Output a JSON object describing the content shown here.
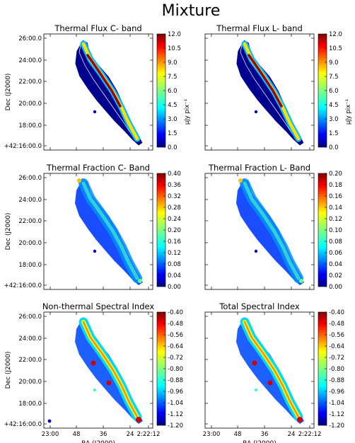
{
  "figure": {
    "title": "Mixture",
    "ylabel": "Dec (J2000)",
    "xlabel": "RA (J2000)",
    "dec_ticks": [
      "26:00.0",
      "24:00.0",
      "22:00.0",
      "20:00.0",
      "18:00.0",
      "+42:16:00.0"
    ],
    "ra_ticks": [
      "23:00",
      "48",
      "36",
      "24",
      "2:22:12"
    ],
    "flux_unit_label": "μJy pix⁻¹"
  },
  "panels": [
    {
      "id": "thermal-flux-c",
      "title": "Thermal Flux C- band",
      "map": "flux",
      "colorbar_ticks": [
        "12.0",
        "10.5",
        "9.0",
        "7.5",
        "6.0",
        "4.5",
        "3.0",
        "1.5",
        "0.0"
      ],
      "colorbar_label": "μJy pix⁻¹",
      "colorbar_range": [
        0.0,
        12.0
      ]
    },
    {
      "id": "thermal-flux-l",
      "title": "Thermal Flux L- band",
      "map": "flux",
      "colorbar_ticks": [
        "12.0",
        "10.5",
        "9.0",
        "7.5",
        "6.0",
        "4.5",
        "3.0",
        "1.5",
        "0.0"
      ],
      "colorbar_label": "μJy pix⁻¹",
      "colorbar_range": [
        0.0,
        12.0
      ]
    },
    {
      "id": "thermal-fraction-c",
      "title": "Thermal Fraction C- Band",
      "map": "fraction",
      "colorbar_ticks": [
        "0.40",
        "0.36",
        "0.32",
        "0.28",
        "0.24",
        "0.20",
        "0.16",
        "0.12",
        "0.08",
        "0.04",
        "0.00"
      ],
      "colorbar_label": "",
      "colorbar_range": [
        0.0,
        0.4
      ]
    },
    {
      "id": "thermal-fraction-l",
      "title": "Thermal Fraction L- Band",
      "map": "fraction",
      "colorbar_ticks": [
        "0.20",
        "0.18",
        "0.16",
        "0.14",
        "0.12",
        "0.10",
        "0.08",
        "0.06",
        "0.04",
        "0.02",
        "0.00"
      ],
      "colorbar_label": "",
      "colorbar_range": [
        0.0,
        0.2
      ]
    },
    {
      "id": "non-thermal-spectral-index",
      "title": "Non-thermal Spectral Index",
      "map": "index",
      "colorbar_ticks": [
        "-0.40",
        "-0.48",
        "-0.56",
        "-0.64",
        "-0.72",
        "-0.80",
        "-0.88",
        "-0.96",
        "-1.04",
        "-1.12",
        "-1.20"
      ],
      "colorbar_label": "",
      "colorbar_range": [
        -1.2,
        -0.4
      ]
    },
    {
      "id": "total-spectral-index",
      "title": "Total Spectral Index",
      "map": "index",
      "colorbar_ticks": [
        "-0.40",
        "-0.48",
        "-0.56",
        "-0.64",
        "-0.72",
        "-0.80",
        "-0.88",
        "-0.96",
        "-1.04",
        "-1.12",
        "-1.20"
      ],
      "colorbar_label": "",
      "colorbar_range": [
        -1.2,
        -0.4
      ]
    }
  ],
  "colors": {
    "colormap": [
      "#00007f",
      "#0000ff",
      "#007fff",
      "#00ffff",
      "#7fff7f",
      "#ffff00",
      "#ff7f00",
      "#ff0000",
      "#7f0000"
    ],
    "contour": "#ffffff",
    "frame": "#000000"
  }
}
